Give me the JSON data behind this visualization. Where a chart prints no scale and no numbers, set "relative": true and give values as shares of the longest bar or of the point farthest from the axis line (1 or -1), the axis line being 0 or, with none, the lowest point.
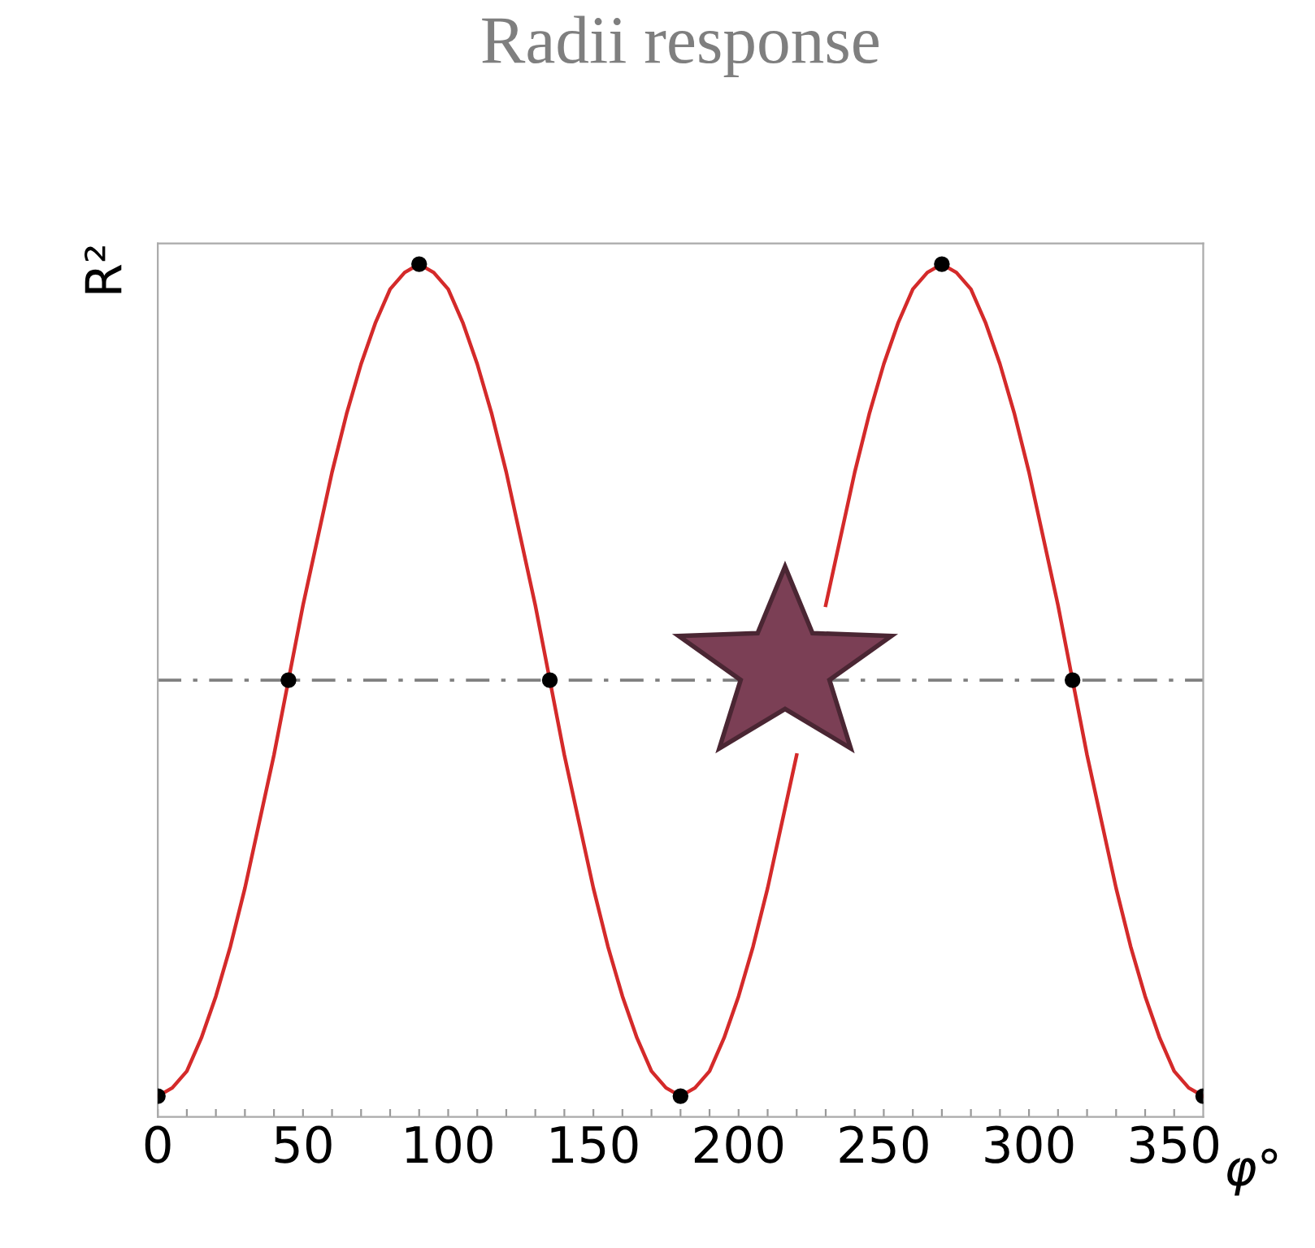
{
  "chart_data": {
    "type": "line",
    "title": "Radii response",
    "xlabel": "φ°",
    "ylabel": "R²",
    "relative": true,
    "tick_labels": "x",
    "grid": false,
    "xlim": [
      0,
      360
    ],
    "xticks": [
      0,
      {
        "value": 10,
        "label": null
      },
      {
        "value": 20,
        "label": null
      },
      {
        "value": 30,
        "label": null
      },
      {
        "value": 40,
        "label": null
      },
      50,
      {
        "value": 60,
        "label": null
      },
      {
        "value": 70,
        "label": null
      },
      {
        "value": 80,
        "label": null
      },
      {
        "value": 90,
        "label": null
      },
      100,
      {
        "value": 110,
        "label": null
      },
      {
        "value": 120,
        "label": null
      },
      {
        "value": 130,
        "label": null
      },
      {
        "value": 140,
        "label": null
      },
      150,
      {
        "value": 160,
        "label": null
      },
      {
        "value": 170,
        "label": null
      },
      {
        "value": 180,
        "label": null
      },
      {
        "value": 190,
        "label": null
      },
      200,
      {
        "value": 210,
        "label": null
      },
      {
        "value": 220,
        "label": null
      },
      {
        "value": 230,
        "label": null
      },
      {
        "value": 240,
        "label": null
      },
      250,
      {
        "value": 260,
        "label": null
      },
      {
        "value": 270,
        "label": null
      },
      {
        "value": 280,
        "label": null
      },
      {
        "value": 290,
        "label": null
      },
      300,
      {
        "value": 310,
        "label": null
      },
      {
        "value": 320,
        "label": null
      },
      {
        "value": 330,
        "label": null
      },
      {
        "value": 340,
        "label": null
      },
      350
    ],
    "ref_lines": [
      {
        "axis": "y",
        "value": 0.5,
        "label": null,
        "color": "#808080",
        "line_style": "dashed"
      }
    ],
    "series": [
      {
        "color": "#d42a2a",
        "marker": "none",
        "line_style": "solid",
        "x": [
          0,
          5,
          10,
          15,
          20,
          25,
          30,
          35,
          40,
          45,
          50,
          55,
          60,
          65,
          70,
          75,
          80,
          85,
          90,
          95,
          100,
          105,
          110,
          115,
          120,
          125,
          130,
          135,
          140,
          145,
          150,
          155,
          160,
          165,
          170,
          175,
          180,
          185,
          190,
          195,
          200,
          205,
          210,
          215,
          220,
          225,
          230,
          235,
          240,
          245,
          250,
          255,
          260,
          265,
          270,
          275,
          280,
          285,
          290,
          295,
          300,
          305,
          310,
          315,
          320,
          325,
          330,
          335,
          340,
          345,
          350,
          355,
          360
        ],
        "values": [
          0,
          0.01,
          0.03,
          0.07,
          0.12,
          0.18,
          0.25,
          0.33,
          0.41,
          0.5,
          0.59,
          0.67,
          0.75,
          0.82,
          0.88,
          0.93,
          0.97,
          0.99,
          1,
          0.99,
          0.97,
          0.93,
          0.88,
          0.82,
          0.75,
          0.67,
          0.59,
          0.5,
          0.41,
          0.33,
          0.25,
          0.18,
          0.12,
          0.07,
          0.03,
          0.01,
          0,
          0.01,
          0.03,
          0.07,
          0.12,
          0.18,
          0.25,
          0.33,
          0.41,
          null,
          0.59,
          0.67,
          0.75,
          0.82,
          0.88,
          0.93,
          0.97,
          0.99,
          1,
          0.99,
          0.97,
          0.93,
          0.88,
          0.82,
          0.75,
          0.67,
          0.59,
          0.5,
          0.41,
          0.33,
          0.25,
          0.18,
          0.12,
          0.07,
          0.03,
          0.01,
          0
        ]
      },
      {
        "type": "scatter",
        "color": "#000000",
        "marker": "circle",
        "x": [
          0,
          45,
          90,
          135,
          180,
          270,
          315,
          360
        ],
        "values": [
          0,
          0.5,
          1,
          0.5,
          0,
          1,
          0.5,
          0
        ]
      }
    ]
  }
}
